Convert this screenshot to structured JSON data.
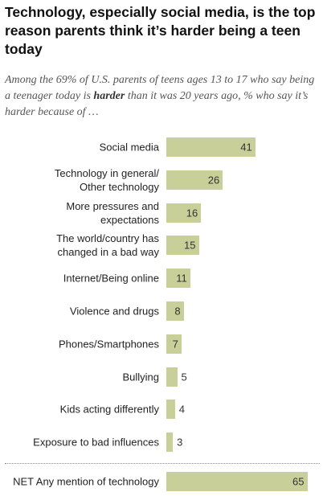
{
  "chart_data": {
    "type": "bar",
    "title": "Technology, especially social media, is the top reason parents think it’s harder being a teen today",
    "subtitle_parts": [
      "Among the 69% of U.S. parents of teens ages 13 to 17 who say being a teenager today is ",
      "harder",
      " than it was 20 years ago, % who say it’s harder because of …"
    ],
    "categories": [
      "Social media",
      "Technology in general/\nOther technology",
      "More pressures and\nexpectations",
      "The world/country has\nchanged in a bad way",
      "Internet/Being online",
      "Violence and drugs",
      "Phones/Smartphones",
      "Bullying",
      "Kids acting differently",
      "Exposure to bad influences"
    ],
    "values": [
      41,
      26,
      16,
      15,
      11,
      8,
      7,
      5,
      4,
      3
    ],
    "net_category": "NET Any mention of technology",
    "net_value": 65,
    "color": "#c8cf98"
  }
}
